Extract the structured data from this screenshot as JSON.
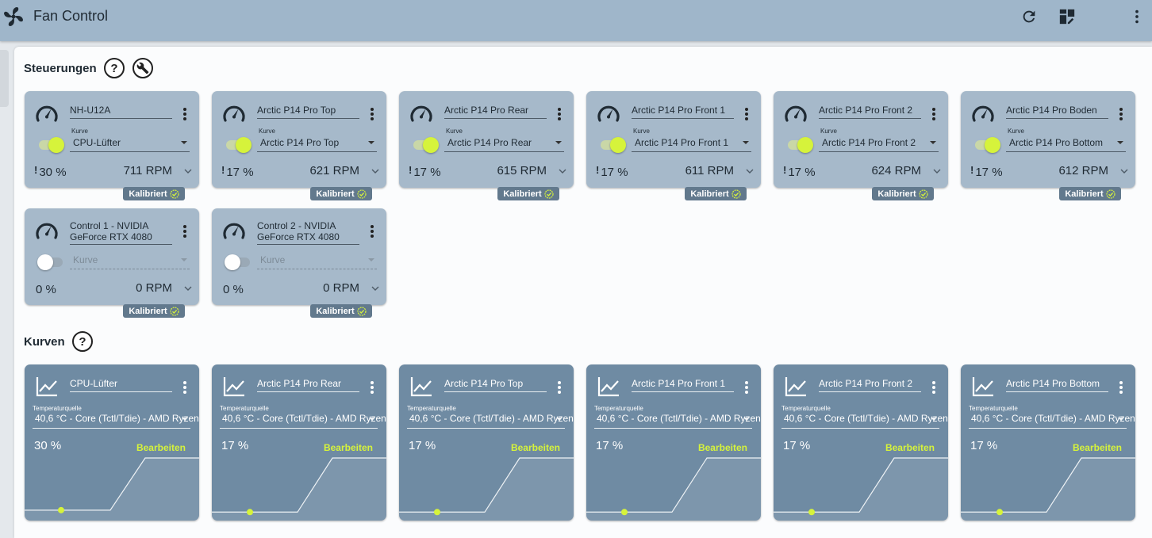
{
  "app": {
    "title": "Fan Control"
  },
  "colors": {
    "accent": "#d6f33b",
    "titlebar": "#9fb6ca",
    "control_card": "#a6b9ca",
    "curve_card": "#6f8ba3",
    "badge": "#62798d"
  },
  "toolbar": {
    "icons": [
      "refresh-icon",
      "dashboard-edit-icon",
      "more-vert-icon"
    ]
  },
  "controls": {
    "title": "Steuerungen",
    "help_label": "?",
    "curve_label": "Kurve",
    "items": [
      {
        "name": "NH-U12A",
        "enabled": true,
        "curve": "CPU-Lüfter",
        "warn": "!",
        "percent": "30 %",
        "rpm": "711 RPM",
        "badge": "Kalibriert"
      },
      {
        "name": "Arctic P14 Pro Top",
        "enabled": true,
        "curve": "Arctic P14 Pro Top",
        "warn": "!",
        "percent": "17 %",
        "rpm": "621 RPM",
        "badge": "Kalibriert"
      },
      {
        "name": "Arctic P14 Pro Rear",
        "enabled": true,
        "curve": "Arctic P14 Pro Rear",
        "warn": "!",
        "percent": "17 %",
        "rpm": "615 RPM",
        "badge": "Kalibriert"
      },
      {
        "name": "Arctic P14 Pro Front 1",
        "enabled": true,
        "curve": "Arctic P14 Pro Front 1",
        "warn": "!",
        "percent": "17 %",
        "rpm": "611 RPM",
        "badge": "Kalibriert"
      },
      {
        "name": "Arctic P14 Pro Front 2",
        "enabled": true,
        "curve": "Arctic P14 Pro Front 2",
        "warn": "!",
        "percent": "17 %",
        "rpm": "624 RPM",
        "badge": "Kalibriert"
      },
      {
        "name": "Arctic P14 Pro Boden",
        "enabled": true,
        "curve": "Arctic P14 Pro Bottom",
        "warn": "!",
        "percent": "17 %",
        "rpm": "612 RPM",
        "badge": "Kalibriert"
      },
      {
        "name": "Control 1 - NVIDIA GeForce RTX 4080",
        "enabled": false,
        "curve": "Kurve",
        "warn": "",
        "percent": "0 %",
        "rpm": "0 RPM",
        "badge": "Kalibriert"
      },
      {
        "name": "Control 2 - NVIDIA GeForce RTX 4080",
        "enabled": false,
        "curve": "Kurve",
        "warn": "",
        "percent": "0 %",
        "rpm": "0 RPM",
        "badge": "Kalibriert"
      }
    ]
  },
  "curves": {
    "title": "Kurven",
    "help_label": "?",
    "temp_label": "Temperaturquelle",
    "edit_label": "Bearbeiten",
    "items": [
      {
        "name": "CPU-Lüfter",
        "source": "40,6 °C - Core (Tctl/Tdie) - AMD Ryzen",
        "percent": "30 %",
        "current_level": 0.15
      },
      {
        "name": "Arctic P14 Pro Rear",
        "source": "40,6 °C - Core (Tctl/Tdie) - AMD Ryzen",
        "percent": "17 %",
        "current_level": 0.12
      },
      {
        "name": "Arctic P14 Pro Top",
        "source": "40,6 °C - Core (Tctl/Tdie) - AMD Ryzen",
        "percent": "17 %",
        "current_level": 0.12
      },
      {
        "name": "Arctic P14 Pro Front 1",
        "source": "40,6 °C - Core (Tctl/Tdie) - AMD Ryzen",
        "percent": "17 %",
        "current_level": 0.12
      },
      {
        "name": "Arctic P14 Pro Front 2",
        "source": "40,6 °C - Core (Tctl/Tdie) - AMD Ryzen",
        "percent": "17 %",
        "current_level": 0.12
      },
      {
        "name": "Arctic P14 Pro Bottom",
        "source": "40,6 °C - Core (Tctl/Tdie) - AMD Ryzen",
        "percent": "17 %",
        "current_level": 0.12
      }
    ]
  }
}
